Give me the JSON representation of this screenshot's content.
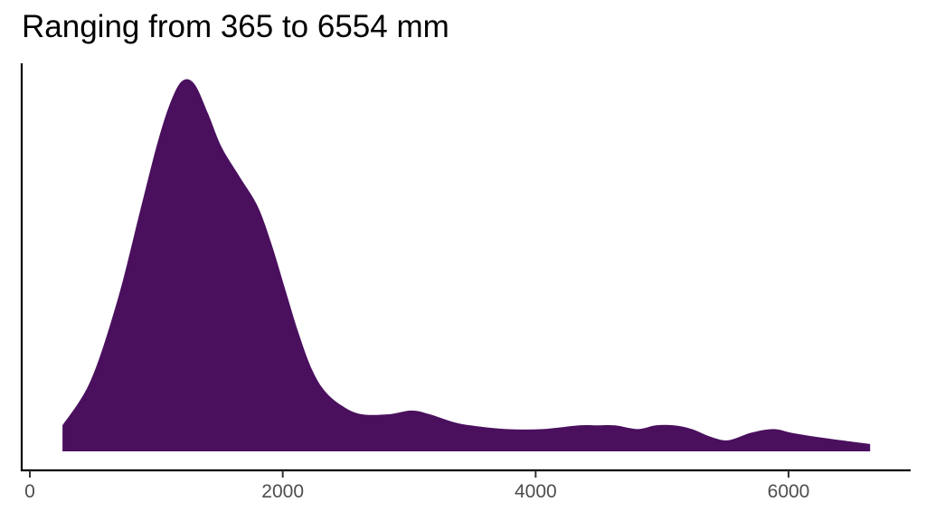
{
  "title": "Ranging from 365 to 6554 mm",
  "colors": {
    "fill": "#4a105e",
    "axis": "#000000",
    "tick_text": "#4d4d4d",
    "background": "#ffffff"
  },
  "x_axis": {
    "ticks": [
      {
        "value": 0,
        "label": "0"
      },
      {
        "value": 2000,
        "label": "2000"
      },
      {
        "value": 4000,
        "label": "4000"
      },
      {
        "value": 6000,
        "label": "6000"
      }
    ]
  },
  "chart_data": {
    "type": "area",
    "subtype": "density",
    "title": "Ranging from 365 to 6554 mm",
    "xlabel": "",
    "ylabel": "",
    "xlim": [
      0,
      7000
    ],
    "grid": false,
    "legend": "none",
    "x_tick_labels": [
      "0",
      "2000",
      "4000",
      "6000"
    ],
    "y_tick_labels": [],
    "series": [
      {
        "name": "density",
        "color": "#4a105e",
        "x": [
          258,
          480,
          695,
          873,
          1016,
          1123,
          1210,
          1303,
          1410,
          1517,
          1660,
          1803,
          1910,
          2017,
          2124,
          2232,
          2339,
          2482,
          2625,
          2840,
          3019,
          3162,
          3341,
          3484,
          3770,
          4056,
          4342,
          4485,
          4628,
          4807,
          4950,
          5093,
          5236,
          5379,
          5522,
          5701,
          5880,
          6023,
          6202,
          6416,
          6645
        ],
        "relative_density": [
          0.07,
          0.19,
          0.41,
          0.65,
          0.84,
          0.95,
          1.0,
          0.99,
          0.91,
          0.82,
          0.74,
          0.66,
          0.56,
          0.44,
          0.32,
          0.22,
          0.16,
          0.12,
          0.1,
          0.1,
          0.11,
          0.1,
          0.08,
          0.07,
          0.06,
          0.06,
          0.07,
          0.07,
          0.07,
          0.06,
          0.07,
          0.07,
          0.06,
          0.04,
          0.03,
          0.05,
          0.06,
          0.05,
          0.04,
          0.03,
          0.02
        ]
      }
    ]
  }
}
